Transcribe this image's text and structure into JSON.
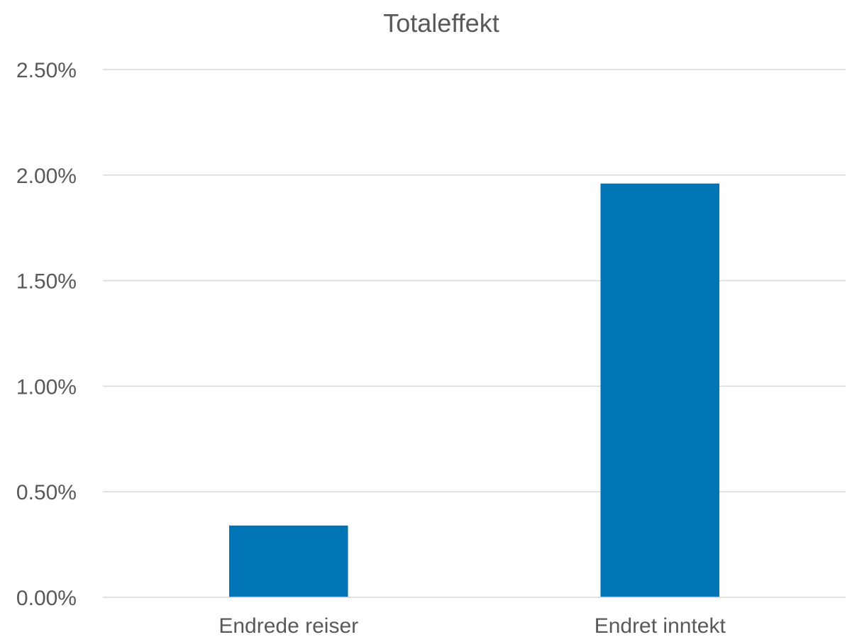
{
  "chart_data": {
    "type": "bar",
    "title": "Totaleffekt",
    "categories": [
      "Endrede reiser",
      "Endret inntekt"
    ],
    "series": [
      {
        "values": [
          0.0034,
          0.0196
        ],
        "color": "#0075B6"
      }
    ],
    "ylim": [
      0,
      0.025
    ],
    "yticks": [
      0,
      0.005,
      0.01,
      0.015,
      0.02,
      0.025
    ],
    "ytick_labels": [
      "0.00%",
      "0.50%",
      "1.00%",
      "1.50%",
      "2.00%",
      "2.50%"
    ],
    "xlabel": "",
    "ylabel": "",
    "grid": true,
    "legend": "none"
  }
}
